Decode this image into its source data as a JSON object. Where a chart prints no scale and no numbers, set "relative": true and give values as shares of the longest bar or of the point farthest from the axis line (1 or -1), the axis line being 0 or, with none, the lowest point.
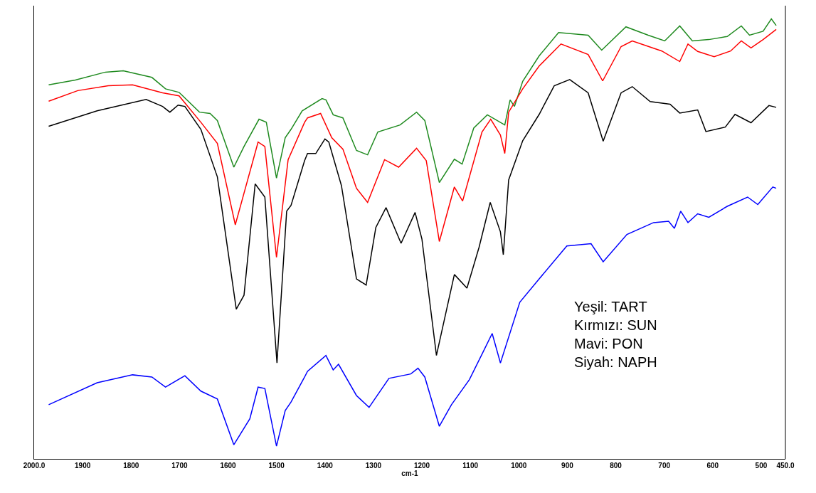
{
  "chart_data": {
    "type": "line",
    "relative": true,
    "xlabel": "cm-1",
    "xlim": [
      2000,
      450
    ],
    "xticks": [
      {
        "value": 2000,
        "label": "2000.0"
      },
      1900,
      1800,
      1700,
      1600,
      1500,
      1400,
      1300,
      1200,
      1100,
      1000,
      900,
      800,
      700,
      600,
      500,
      {
        "value": 450,
        "label": "450.0"
      }
    ],
    "grid": false,
    "marker": "none",
    "line_style": "solid",
    "annotations": [
      "Yeşil: TART",
      "Kırmızı: SUN",
      "Mavi: PON",
      "Siyah: NAPH"
    ],
    "series": [
      {
        "color": "#1f8a1f",
        "x": [
          1970,
          1915,
          1853,
          1816,
          1757,
          1729,
          1701,
          1659,
          1637,
          1622,
          1588,
          1567,
          1536,
          1521,
          1500,
          1482,
          1470,
          1447,
          1406,
          1398,
          1383,
          1363,
          1335,
          1312,
          1291,
          1245,
          1211,
          1194,
          1164,
          1133,
          1117,
          1093,
          1065,
          1029,
          1018,
          1009,
          992,
          958,
          918,
          857,
          829,
          779,
          733,
          699,
          668,
          642,
          608,
          570,
          541,
          524,
          496,
          479,
          469
        ],
        "values": [
          0.85,
          0.861,
          0.879,
          0.882,
          0.867,
          0.841,
          0.833,
          0.788,
          0.785,
          0.769,
          0.663,
          0.71,
          0.772,
          0.765,
          0.638,
          0.73,
          0.749,
          0.791,
          0.819,
          0.816,
          0.782,
          0.775,
          0.701,
          0.691,
          0.743,
          0.759,
          0.788,
          0.769,
          0.628,
          0.681,
          0.67,
          0.752,
          0.782,
          0.759,
          0.816,
          0.801,
          0.858,
          0.916,
          0.969,
          0.963,
          0.929,
          0.982,
          0.963,
          0.95,
          0.984,
          0.95,
          0.953,
          0.96,
          0.984,
          0.963,
          0.972,
          1,
          0.985
        ]
      },
      {
        "color": "#ff0000",
        "x": [
          1970,
          1910,
          1847,
          1797,
          1735,
          1701,
          1656,
          1622,
          1585,
          1561,
          1538,
          1524,
          1500,
          1476,
          1442,
          1436,
          1409,
          1386,
          1363,
          1335,
          1312,
          1277,
          1248,
          1211,
          1191,
          1164,
          1133,
          1116,
          1076,
          1058,
          1038,
          1029,
          1021,
          992,
          958,
          913,
          857,
          827,
          789,
          766,
          705,
          668,
          651,
          631,
          597,
          563,
          541,
          521,
          496,
          469
        ],
        "values": [
          0.813,
          0.837,
          0.848,
          0.85,
          0.832,
          0.825,
          0.765,
          0.717,
          0.532,
          0.628,
          0.72,
          0.71,
          0.458,
          0.68,
          0.765,
          0.775,
          0.785,
          0.73,
          0.704,
          0.615,
          0.583,
          0.68,
          0.663,
          0.706,
          0.678,
          0.494,
          0.618,
          0.586,
          0.743,
          0.772,
          0.736,
          0.694,
          0.788,
          0.841,
          0.893,
          0.943,
          0.919,
          0.859,
          0.937,
          0.95,
          0.927,
          0.903,
          0.943,
          0.926,
          0.914,
          0.927,
          0.95,
          0.934,
          0.953,
          0.976
        ]
      },
      {
        "color": "#0000ff",
        "x": [
          1970,
          1870,
          1797,
          1757,
          1729,
          1689,
          1656,
          1622,
          1588,
          1555,
          1538,
          1524,
          1500,
          1482,
          1470,
          1442,
          1436,
          1398,
          1383,
          1372,
          1335,
          1309,
          1268,
          1223,
          1208,
          1194,
          1164,
          1139,
          1102,
          1076,
          1055,
          1038,
          998,
          958,
          901,
          851,
          826,
          777,
          722,
          691,
          679,
          666,
          651,
          631,
          608,
          570,
          528,
          507,
          476,
          469
        ],
        "values": [
          0.123,
          0.173,
          0.191,
          0.186,
          0.163,
          0.189,
          0.154,
          0.136,
          0.032,
          0.091,
          0.163,
          0.16,
          0.029,
          0.11,
          0.129,
          0.186,
          0.199,
          0.235,
          0.202,
          0.215,
          0.144,
          0.117,
          0.183,
          0.193,
          0.206,
          0.186,
          0.074,
          0.123,
          0.18,
          0.238,
          0.285,
          0.218,
          0.356,
          0.409,
          0.484,
          0.489,
          0.448,
          0.51,
          0.537,
          0.54,
          0.524,
          0.563,
          0.537,
          0.557,
          0.549,
          0.574,
          0.595,
          0.578,
          0.618,
          0.615
        ]
      },
      {
        "color": "#000000",
        "x": [
          1970,
          1870,
          1769,
          1735,
          1720,
          1703,
          1689,
          1656,
          1622,
          1583,
          1567,
          1544,
          1524,
          1499,
          1479,
          1470,
          1442,
          1436,
          1419,
          1400,
          1392,
          1366,
          1335,
          1315,
          1295,
          1274,
          1243,
          1214,
          1200,
          1170,
          1133,
          1107,
          1082,
          1059,
          1038,
          1032,
          1021,
          992,
          958,
          927,
          895,
          857,
          826,
          789,
          766,
          729,
          688,
          668,
          631,
          614,
          574,
          554,
          521,
          484,
          469
        ],
        "values": [
          0.756,
          0.791,
          0.817,
          0.801,
          0.788,
          0.804,
          0.801,
          0.749,
          0.641,
          0.34,
          0.372,
          0.625,
          0.595,
          0.218,
          0.563,
          0.576,
          0.678,
          0.694,
          0.694,
          0.727,
          0.72,
          0.621,
          0.409,
          0.395,
          0.526,
          0.571,
          0.49,
          0.56,
          0.5,
          0.235,
          0.419,
          0.388,
          0.481,
          0.583,
          0.516,
          0.464,
          0.634,
          0.723,
          0.783,
          0.848,
          0.862,
          0.832,
          0.722,
          0.832,
          0.846,
          0.812,
          0.806,
          0.786,
          0.793,
          0.744,
          0.754,
          0.783,
          0.764,
          0.803,
          0.799
        ]
      }
    ]
  }
}
